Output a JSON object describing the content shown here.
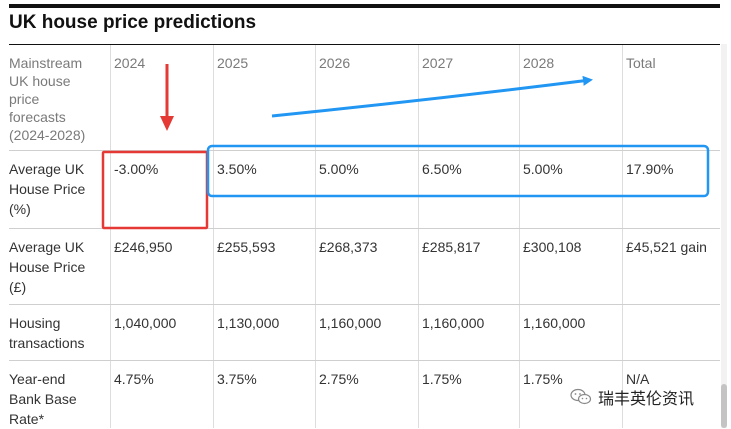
{
  "title": "UK house price predictions",
  "table": {
    "header": {
      "label_lines": [
        "Mainstream",
        "UK house",
        "price",
        "forecasts",
        "(2024-2028)"
      ],
      "years": [
        "2024",
        "2025",
        "2026",
        "2027",
        "2028"
      ],
      "total": "Total"
    },
    "rows": [
      {
        "label_lines": [
          "Average UK",
          "House Price",
          "(%)"
        ],
        "values": [
          "-3.00%",
          "3.50%",
          "5.00%",
          "6.50%",
          "5.00%",
          "17.90%"
        ]
      },
      {
        "label_lines": [
          "Average UK",
          "House Price",
          "(£)"
        ],
        "values": [
          "£246,950",
          "£255,593",
          "£268,373",
          "£285,817",
          "£300,108",
          "£45,521 gain"
        ]
      },
      {
        "label_lines": [
          "Housing",
          "transactions"
        ],
        "values": [
          "1,040,000",
          "1,130,000",
          "1,160,000",
          "1,160,000",
          "1,160,000",
          ""
        ]
      },
      {
        "label_lines": [
          "Year-end",
          "Bank Base",
          "Rate*"
        ],
        "values": [
          "4.75%",
          "3.75%",
          "2.75%",
          "1.75%",
          "1.75%",
          "N/A"
        ]
      }
    ]
  },
  "annotations": {
    "red_color": "#e53935",
    "blue_color": "#2196f3"
  },
  "watermark": {
    "text": "瑞丰英伦资讯",
    "icon": "wechat-icon"
  }
}
